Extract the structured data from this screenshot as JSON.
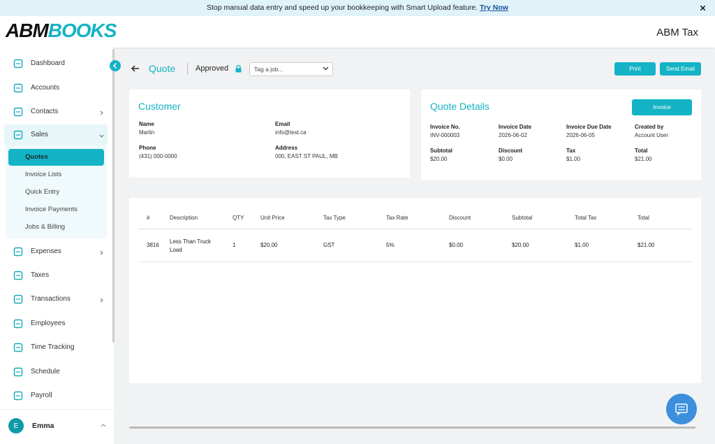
{
  "banner": {
    "text": "Stop manual data entry and speed up your bookkeeping with Smart Upload feature.",
    "link": "Try Now"
  },
  "header": {
    "logo_left": "ABM",
    "logo_right": "BOOKS",
    "company": "ABM Tax"
  },
  "sidebar": {
    "items": [
      "Dashboard",
      "Accounts",
      "Contacts",
      "Sales",
      "Expenses",
      "Taxes",
      "Transactions",
      "Employees",
      "Time Tracking",
      "Schedule",
      "Payroll"
    ],
    "sub_items": [
      "Quotes",
      "Invoice Lists",
      "Quick Entry",
      "Invoice Payments",
      "Jobs & Billing"
    ],
    "user": {
      "initial": "E",
      "name": "Emma"
    }
  },
  "page": {
    "title": "Quote",
    "status": "Approved",
    "tag_placeholder": "Tag a job...",
    "buttons": [
      "Print",
      "Send Email"
    ]
  },
  "customer": {
    "title": "Customer",
    "fields": [
      {
        "label": "Name",
        "value": "Martin"
      },
      {
        "label": "Email",
        "value": "info@test.ca"
      },
      {
        "label": "Phone",
        "value": "(431) 000-0000"
      },
      {
        "label": "Address",
        "value": "000, EAST ST PAUL, MB"
      }
    ]
  },
  "quote_details": {
    "title": "Quote Details",
    "button": "Invoice",
    "fields": [
      {
        "label": "Invoice No.",
        "value": "INV-000003"
      },
      {
        "label": "Invoice Date",
        "value": "2026-06-02"
      },
      {
        "label": "Invoice Due Date",
        "value": "2026-06-05"
      },
      {
        "label": "Created by",
        "value": "Account User"
      },
      {
        "label": "Subtotal",
        "value": "$20.00"
      },
      {
        "label": "Discount",
        "value": "$0.00"
      },
      {
        "label": "Tax",
        "value": "$1.00"
      },
      {
        "label": "Total",
        "value": "$21.00"
      }
    ]
  },
  "table": {
    "headers": [
      "#",
      "Description",
      "QTY",
      "Unit Price",
      "Tax Type",
      "Tax Rate",
      "Discount",
      "Subtotal",
      "Total Tax",
      "Total"
    ],
    "rows": [
      [
        "3816",
        "Less Than Truck Load",
        "1",
        "$20.00",
        "GST",
        "5%",
        "$0.00",
        "$20.00",
        "$1.00",
        "$21.00"
      ]
    ]
  }
}
